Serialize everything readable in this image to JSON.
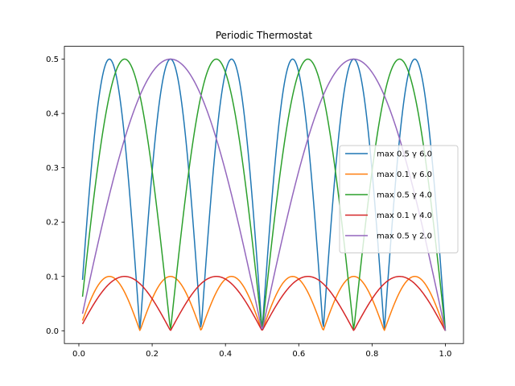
{
  "chart_data": {
    "type": "line",
    "title": "Periodic Thermostat",
    "xlabel": "",
    "ylabel": "",
    "xlim": [
      -0.0395,
      1.0495
    ],
    "ylim": [
      -0.0235,
      0.5235
    ],
    "x_ticks": [
      0.0,
      0.2,
      0.4,
      0.6,
      0.8,
      1.0
    ],
    "x_tick_labels": [
      "0.0",
      "0.2",
      "0.4",
      "0.6",
      "0.8",
      "1.0"
    ],
    "y_ticks": [
      0.0,
      0.1,
      0.2,
      0.3,
      0.4,
      0.5
    ],
    "y_tick_labels": [
      "0.0",
      "0.1",
      "0.2",
      "0.3",
      "0.4",
      "0.5"
    ],
    "grid": false,
    "legend_position": "center-right",
    "x_range": [
      0.01,
      1.0
    ],
    "samples": 400,
    "series": [
      {
        "name": "max 0.5 γ 6.0",
        "max": 0.5,
        "gamma": 6.0,
        "color": "#1f77b4"
      },
      {
        "name": "max 0.1 γ 6.0",
        "max": 0.1,
        "gamma": 6.0,
        "color": "#ff7f0e"
      },
      {
        "name": "max 0.5 γ 4.0",
        "max": 0.5,
        "gamma": 4.0,
        "color": "#2ca02c"
      },
      {
        "name": "max 0.1 γ 4.0",
        "max": 0.1,
        "gamma": 4.0,
        "color": "#d62728"
      },
      {
        "name": "max 0.5 γ 2.0",
        "max": 0.5,
        "gamma": 2.0,
        "color": "#9467bd"
      }
    ]
  }
}
